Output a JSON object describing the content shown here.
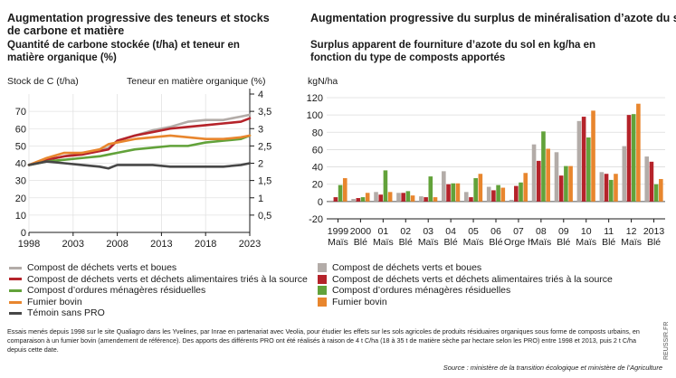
{
  "left": {
    "title": "Augmentation progressive des teneurs et stocks de carbone et matière",
    "subtitle": "Quantité de carbone stockée (t/ha) et teneur en matière organique (%)",
    "y_left_label": "Stock de C (t/ha)",
    "y_right_label": "Teneur en matière organique (%)"
  },
  "right": {
    "title": "Augmentation progressive du surplus de minéralisation d’azote du sol",
    "subtitle": "Surplus apparent de fourniture d’azote du sol en kg/ha en fonction du type de composts apportés",
    "y_label": "kgN/ha"
  },
  "legend_left": [
    {
      "label": "Compost de déchets verts et boues",
      "color": "#b3aca8"
    },
    {
      "label": "Compost de déchets verts et déchets alimentaires triés à la source",
      "color": "#b5232a"
    },
    {
      "label": "Compost d’ordures ménagères résiduelles",
      "color": "#62a23a"
    },
    {
      "label": "Fumier bovin",
      "color": "#e8862e"
    },
    {
      "label": "Témoin sans PRO",
      "color": "#474747"
    }
  ],
  "legend_right": [
    {
      "label": "Compost de déchets verts et boues",
      "color": "#b3aca8"
    },
    {
      "label": "Compost de déchets verts et déchets alimentaires triés à la source",
      "color": "#b5232a"
    },
    {
      "label": "Compost d’ordures ménagères résiduelles",
      "color": "#62a23a"
    },
    {
      "label": "Fumier bovin",
      "color": "#e8862e"
    }
  ],
  "footnote": "Essais menés depuis 1998 sur le site Qualiagro dans les Yvelines, par Inrae en partenariat avec Veolia, pour étudier les effets sur les sols agricoles de produits résiduaires organiques sous forme de composts urbains, en comparaison à un fumier bovin (amendement de référence). Des apports des différents PRO ont été réalisés à raison de 4 t C/ha (18 à 35 t de matière sèche par hectare selon les PRO) entre 1998 et 2013, puis 2 t C/ha depuis cette date.",
  "source": "Source : ministère de la transition écologique et ministère de l’Agriculture",
  "credit": "REUSSIR.FR",
  "chart_data": [
    {
      "type": "line",
      "title": "Quantité de carbone stockée (t/ha) et teneur en matière organique (%)",
      "xlabel": "",
      "ylabel": "Stock de C (t/ha)",
      "y2label": "Teneur en matière organique (%)",
      "xlim": [
        1998,
        2023
      ],
      "ylim": [
        0,
        80
      ],
      "y2lim": [
        0,
        4
      ],
      "x_ticks": [
        1998,
        2003,
        2008,
        2013,
        2018,
        2023
      ],
      "y_ticks": [
        0,
        10,
        20,
        30,
        40,
        50,
        60,
        70
      ],
      "y2_ticks": [
        "0,5",
        "1",
        "1,5",
        "2",
        "2,5",
        "3",
        "3,5",
        "4"
      ],
      "y2_tick_values": [
        0.5,
        1,
        1.5,
        2,
        2.5,
        3,
        3.5,
        4
      ],
      "grid": true,
      "x": [
        1998,
        2000,
        2002,
        2004,
        2006,
        2007,
        2008,
        2010,
        2012,
        2014,
        2016,
        2018,
        2020,
        2022,
        2023
      ],
      "series": [
        {
          "name": "Compost de déchets verts et boues",
          "color": "#b3aca8",
          "values": [
            39,
            42,
            44,
            46,
            47,
            49,
            53,
            56,
            59,
            61,
            64,
            65,
            65,
            67,
            68
          ]
        },
        {
          "name": "Compost de déchets verts et déchets alimentaires triés à la source",
          "color": "#b5232a",
          "values": [
            39,
            42,
            44,
            45,
            47,
            48,
            53,
            56,
            58,
            60,
            61,
            62,
            63,
            64,
            66
          ]
        },
        {
          "name": "Compost d’ordures ménagères résiduelles",
          "color": "#62a23a",
          "values": [
            39,
            41,
            42,
            43,
            44,
            45,
            46,
            48,
            49,
            50,
            50,
            52,
            53,
            54,
            56
          ]
        },
        {
          "name": "Fumier bovin",
          "color": "#e8862e",
          "values": [
            39,
            43,
            46,
            46,
            48,
            51,
            52,
            54,
            55,
            56,
            55,
            54,
            54,
            55,
            56
          ]
        },
        {
          "name": "Témoin sans PRO",
          "color": "#474747",
          "values": [
            39,
            41,
            40,
            39,
            38,
            37,
            39,
            39,
            39,
            38,
            38,
            38,
            38,
            39,
            40
          ]
        }
      ]
    },
    {
      "type": "bar",
      "title": "Surplus apparent de fourniture d’azote du sol en kg/ha en fonction du type de composts apportés",
      "xlabel": "",
      "ylabel": "kgN/ha",
      "ylim": [
        -20,
        120
      ],
      "y_ticks": [
        -20,
        0,
        20,
        40,
        60,
        80,
        100,
        120
      ],
      "grid": true,
      "categories": [
        "1999 Maïs",
        "2000 Blé",
        "01 Maïs",
        "02 Blé",
        "03 Maïs",
        "04 Blé",
        "05 Maïs",
        "06 Blé",
        "07 Orge h",
        "08 Maïs",
        "09 Blé",
        "10 Maïs",
        "11 Blé",
        "12 Maïs",
        "2013 Blé"
      ],
      "cat_top": [
        "1999",
        "2000",
        "01",
        "02",
        "03",
        "04",
        "05",
        "06",
        "07",
        "08",
        "09",
        "10",
        "11",
        "12",
        "2013"
      ],
      "cat_bottom": [
        "Maïs",
        "Blé",
        "Maïs",
        "Blé",
        "Maïs",
        "Blé",
        "Maïs",
        "Blé",
        "Orge h",
        "Maïs",
        "Blé",
        "Maïs",
        "Blé",
        "Maïs",
        "Blé"
      ],
      "series": [
        {
          "name": "Compost de déchets verts et boues",
          "color": "#b3aca8",
          "values": [
            1,
            3,
            11,
            10,
            6,
            35,
            11,
            17,
            2,
            66,
            57,
            93,
            34,
            64,
            52
          ]
        },
        {
          "name": "Compost de déchets verts et déchets alimentaires triés à la source",
          "color": "#b5232a",
          "values": [
            5,
            4,
            8,
            10,
            5,
            20,
            5,
            13,
            18,
            47,
            30,
            98,
            32,
            100,
            46
          ]
        },
        {
          "name": "Compost d’ordures ménagères résiduelles",
          "color": "#62a23a",
          "values": [
            19,
            5,
            36,
            12,
            29,
            21,
            27,
            19,
            22,
            81,
            41,
            74,
            25,
            101,
            20
          ]
        },
        {
          "name": "Fumier bovin",
          "color": "#e8862e",
          "values": [
            27,
            10,
            11,
            7,
            5,
            21,
            32,
            16,
            33,
            61,
            41,
            105,
            32,
            113,
            26
          ]
        }
      ]
    }
  ]
}
